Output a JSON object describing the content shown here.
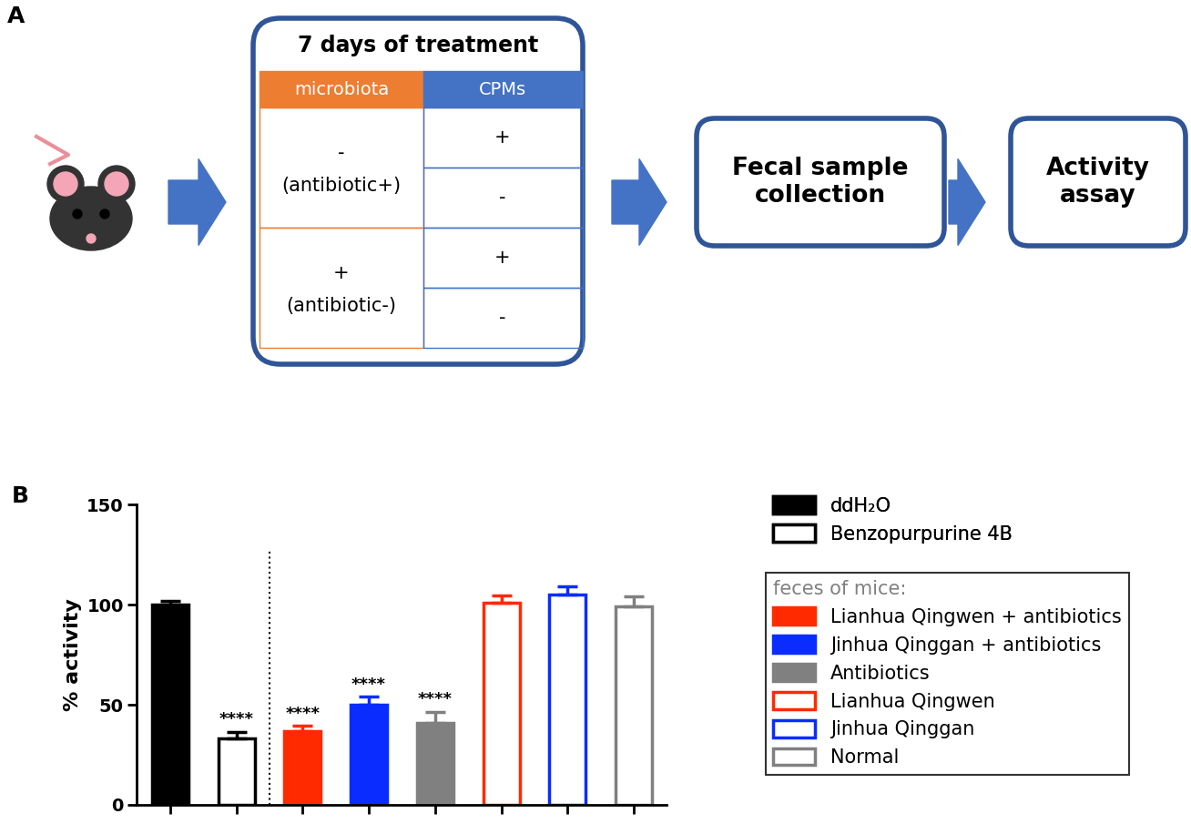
{
  "panel_a": {
    "label": "A",
    "title": "7 days of treatment",
    "table": {
      "header": [
        "microbiota",
        "CPMs"
      ],
      "rows": [
        {
          "microbiota": [
            "-",
            "(antibiotic+)"
          ],
          "CPMs": [
            "+",
            "-"
          ]
        },
        {
          "microbiota": [
            "+",
            "(antibiotic-)"
          ],
          "CPMs": [
            "+",
            "-"
          ]
        }
      ]
    },
    "steps": [
      "Fecal sample\ncollection",
      "Activity\nassay"
    ]
  },
  "chart_data": {
    "type": "bar",
    "label": "B",
    "y_label": "% activity",
    "categories": [
      null,
      null,
      null,
      null,
      null,
      null,
      null,
      null
    ],
    "ylim": [
      0,
      150
    ],
    "yticks": [
      0,
      50,
      100,
      150
    ],
    "legend": "upper left",
    "legend_title": "feces of mice:",
    "series": [
      {
        "name": "ddH₂O",
        "color": "#000000",
        "values": [
          100,
          null,
          null,
          null,
          null,
          null,
          null,
          null
        ],
        "errors": [
          2,
          null,
          null,
          null,
          null,
          null,
          null,
          null
        ],
        "annotation": null
      },
      {
        "name": "Benzopurpurine 4B",
        "color": "#000000",
        "values": [
          null,
          33,
          null,
          null,
          null,
          null,
          null,
          null
        ],
        "errors": [
          null,
          3.5,
          null,
          null,
          null,
          null,
          null,
          null
        ],
        "annotation": "****"
      },
      {
        "name": "Lianhua Qingwen + antibiotics",
        "color": "#ff2a00",
        "values": [
          null,
          null,
          37,
          null,
          null,
          null,
          null,
          null
        ],
        "errors": [
          null,
          null,
          2.5,
          null,
          null,
          null,
          null,
          null
        ],
        "annotation": "****"
      },
      {
        "name": "Jinhua Qinggan + antibiotics",
        "color": "#0a2cff",
        "values": [
          null,
          null,
          null,
          50,
          null,
          null,
          null,
          null
        ],
        "errors": [
          null,
          null,
          null,
          4,
          null,
          null,
          null,
          null
        ],
        "annotation": "****"
      },
      {
        "name": "Antibiotics",
        "color": "#808080",
        "values": [
          null,
          null,
          null,
          null,
          41,
          null,
          null,
          null
        ],
        "errors": [
          null,
          null,
          null,
          null,
          5.5,
          null,
          null,
          null
        ],
        "annotation": "****"
      },
      {
        "name": "Lianhua Qingwen",
        "color": "#ff2a00",
        "values": [
          null,
          null,
          null,
          null,
          null,
          101,
          null,
          null
        ],
        "errors": [
          null,
          null,
          null,
          null,
          null,
          3.5,
          null,
          null
        ],
        "annotation": null
      },
      {
        "name": "Jinhua Qinggan",
        "color": "#0a2cff",
        "values": [
          null,
          null,
          null,
          null,
          null,
          null,
          105,
          null
        ],
        "errors": [
          null,
          null,
          null,
          null,
          null,
          null,
          4,
          null
        ],
        "annotation": null
      },
      {
        "name": "Normal",
        "color": "#808080",
        "values": [
          null,
          null,
          null,
          null,
          null,
          null,
          null,
          99
        ],
        "errors": [
          null,
          null,
          null,
          null,
          null,
          null,
          null,
          5
        ],
        "annotation": null
      }
    ]
  }
}
